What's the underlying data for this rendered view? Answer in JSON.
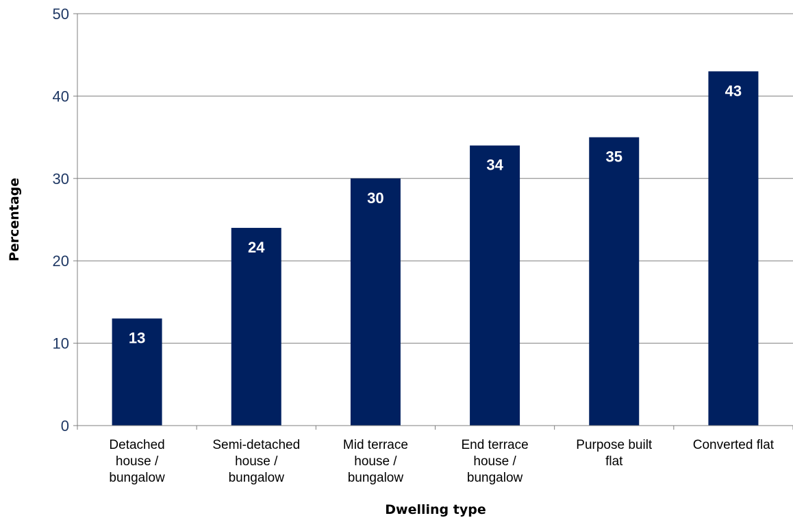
{
  "chart_data": {
    "type": "bar",
    "categories": [
      [
        "Detached",
        "house /",
        "bungalow"
      ],
      [
        "Semi-detached",
        "house /",
        "bungalow"
      ],
      [
        "Mid terrace",
        "house /",
        "bungalow"
      ],
      [
        "End terrace",
        "house /",
        "bungalow"
      ],
      [
        "Purpose built",
        "flat"
      ],
      [
        "Converted flat"
      ]
    ],
    "values": [
      13,
      24,
      30,
      34,
      35,
      43
    ],
    "data_labels": [
      "13",
      "24",
      "30",
      "34",
      "35",
      "43"
    ],
    "xlabel": "Dwelling type",
    "ylabel": "Percentage",
    "ylim": [
      0,
      50
    ],
    "yticks": [
      0,
      10,
      20,
      30,
      40,
      50
    ],
    "ytick_labels": [
      "0",
      "10",
      "20",
      "30",
      "40",
      "50"
    ],
    "grid": true,
    "legend": "none",
    "colors": {
      "bar": "#002060",
      "ytick_text": "#1F3864",
      "gridline": "#7F7F7F",
      "axis": "#7F7F7F",
      "data_label": "#FFFFFF"
    }
  }
}
